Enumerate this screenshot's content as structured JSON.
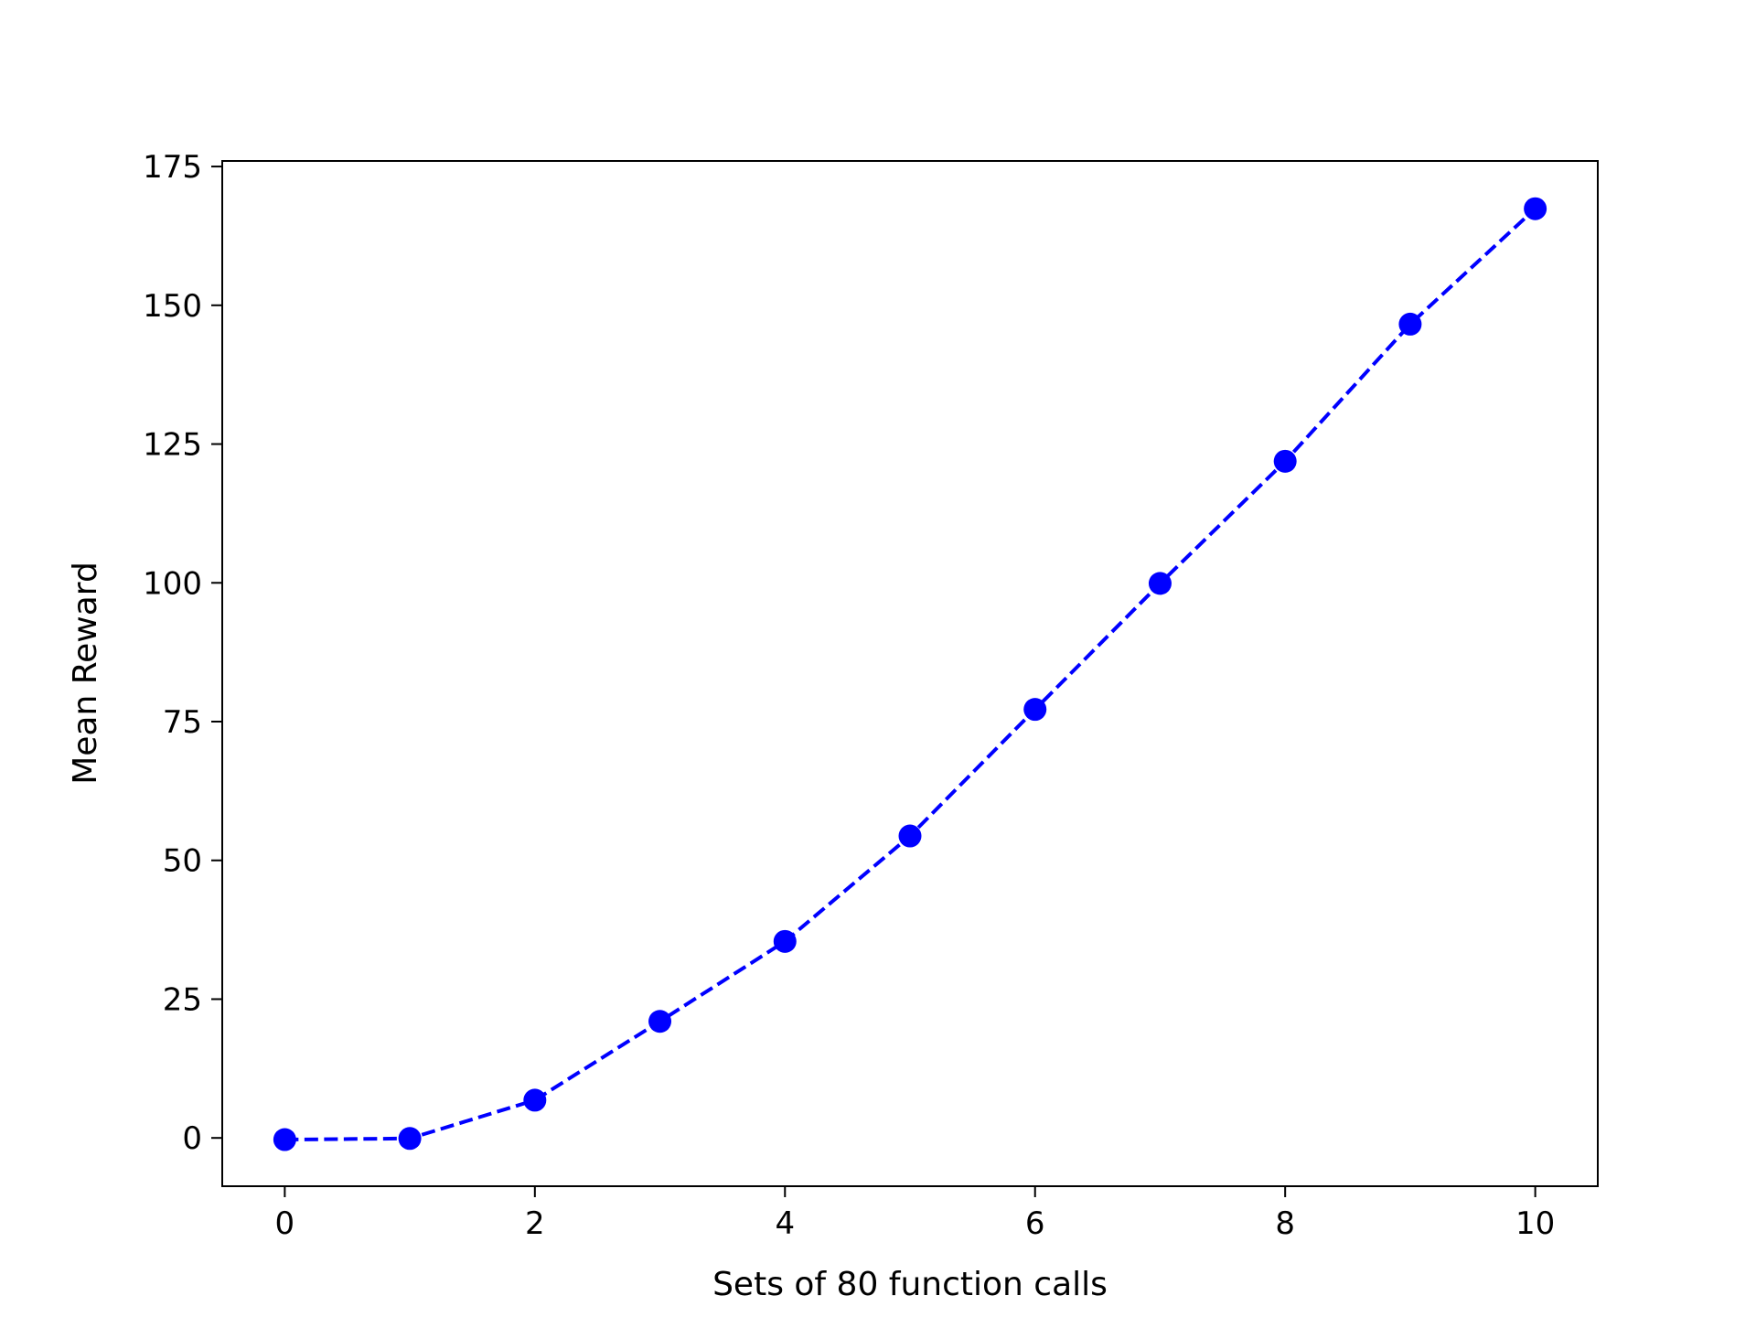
{
  "chart_data": {
    "type": "line",
    "title": "",
    "xlabel": "Sets of 80 function calls",
    "ylabel": "Mean Reward",
    "x": [
      0,
      1,
      2,
      3,
      4,
      5,
      6,
      7,
      8,
      9,
      10
    ],
    "series": [
      {
        "values": [
          -0.3,
          -0.1,
          6.8,
          21.0,
          35.4,
          54.4,
          77.2,
          99.9,
          121.9,
          146.6,
          167.4
        ],
        "color": "#0000ff",
        "line_style": "dashed",
        "marker": "circle"
      }
    ],
    "xlim": [
      -0.5,
      10.5
    ],
    "ylim": [
      -8.7,
      176.0
    ],
    "xticks": [
      0,
      2,
      4,
      6,
      8,
      10
    ],
    "yticks": [
      0,
      25,
      50,
      75,
      100,
      125,
      150,
      175
    ],
    "grid": false,
    "legend": "none"
  }
}
